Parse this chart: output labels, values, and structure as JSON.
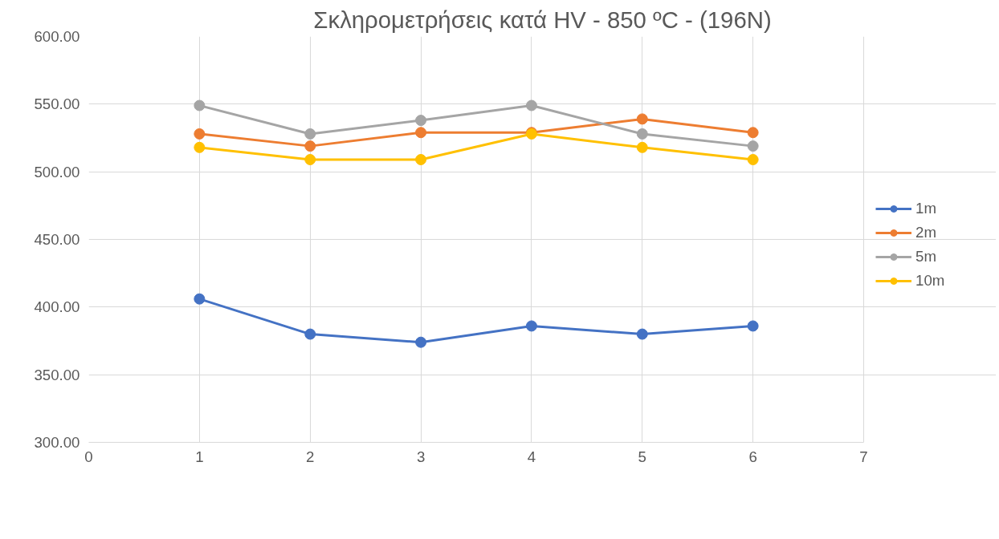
{
  "chart_data": {
    "type": "line",
    "title": "Σκληρομετρήσεις κατά HV - 850 ºC - (196N)",
    "x": [
      1,
      2,
      3,
      4,
      5,
      6
    ],
    "series": [
      {
        "name": "1m",
        "color": "#4472c4",
        "values": [
          406,
          380,
          374,
          386,
          380,
          386
        ]
      },
      {
        "name": "2m",
        "color": "#ed7d31",
        "values": [
          528,
          519,
          529,
          529,
          539,
          529
        ]
      },
      {
        "name": "5m",
        "color": "#a5a5a5",
        "values": [
          549,
          528,
          538,
          549,
          528,
          519
        ]
      },
      {
        "name": "10m",
        "color": "#ffc000",
        "values": [
          518,
          509,
          509,
          528,
          518,
          509
        ]
      }
    ],
    "xlim": [
      0,
      7
    ],
    "xticks": [
      0,
      1,
      2,
      3,
      4,
      5,
      6,
      7
    ],
    "ylim": [
      300,
      600
    ],
    "yticks": [
      {
        "value": 300,
        "label": "300.00"
      },
      {
        "value": 350,
        "label": "350.00"
      },
      {
        "value": 400,
        "label": "400.00"
      },
      {
        "value": 450,
        "label": "450.00"
      },
      {
        "value": 500,
        "label": "500.00"
      },
      {
        "value": 550,
        "label": "550.00"
      },
      {
        "value": 600,
        "label": "600.00"
      }
    ],
    "grid": true,
    "legend": "right",
    "marker": "circle",
    "line_style": "solid"
  }
}
